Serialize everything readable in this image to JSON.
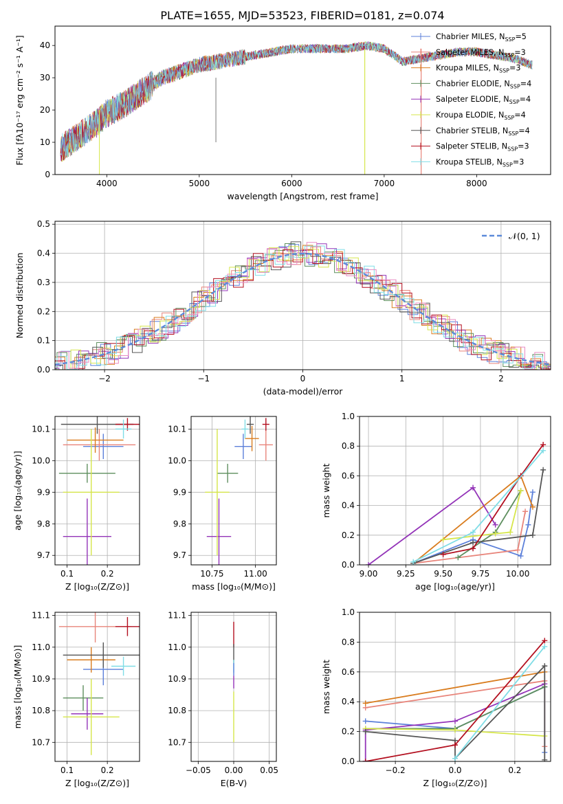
{
  "figure_title": "PLATE=1655, MJD=53523, FIBERID=0181, z=0.074",
  "colors": {
    "Chabrier MILES": "#5b7fd9",
    "Salpeter MILES": "#e8847a",
    "Kroupa MILES": "#d97c1e",
    "Chabrier ELODIE": "#5e8f5e",
    "Salpeter ELODIE": "#9333b8",
    "Kroupa ELODIE": "#d6e64a",
    "Chabrier STELIB": "#555555",
    "Salpeter STELIB": "#b30f1f",
    "Kroupa STELIB": "#7fdde6",
    "hist_pink": "#e88ac2",
    "gaussian": "#5b8ad9"
  },
  "chart_data": [
    {
      "id": "spectrum",
      "type": "line",
      "title": "PLATE=1655, MJD=53523, FIBERID=0181, z=0.074",
      "xlabel": "wavelength [Angstrom, rest frame]",
      "ylabel": "Flux [fλ10⁻¹⁷ erg cm⁻² s⁻¹ A⁻¹]",
      "xlim": [
        3440,
        8800
      ],
      "ylim": [
        0,
        46
      ],
      "xticks": [
        4000,
        5000,
        6000,
        7000,
        8000
      ],
      "yticks": [
        0,
        10,
        20,
        30,
        40
      ],
      "continuum_x": [
        3500,
        3700,
        3900,
        4000,
        4200,
        4400,
        4600,
        4800,
        5000,
        5200,
        5400,
        5600,
        5800,
        6000,
        6200,
        6400,
        6600,
        6800,
        7000,
        7100,
        7200,
        7400,
        7600,
        7800,
        8000,
        8200,
        8400,
        8600
      ],
      "continuum_y": [
        8,
        12,
        16,
        19,
        22,
        26,
        30,
        32,
        34,
        35,
        36,
        37,
        38,
        39,
        39,
        39,
        39,
        40,
        39,
        37,
        35,
        36,
        37,
        38,
        38,
        37,
        36,
        34
      ],
      "legend": [
        {
          "label": "Chabrier MILES, N",
          "n": "5"
        },
        {
          "label": "Salpeter MILES, N",
          "n": "3"
        },
        {
          "label": "Kroupa MILES, N",
          "n": "3"
        },
        {
          "label": "Chabrier ELODIE, N",
          "n": "4"
        },
        {
          "label": "Salpeter ELODIE, N",
          "n": "4"
        },
        {
          "label": "Kroupa ELODIE, N",
          "n": "4"
        },
        {
          "label": "Chabrier STELIB, N",
          "n": "4"
        },
        {
          "label": "Salpeter STELIB, N",
          "n": "3"
        },
        {
          "label": "Kroupa STELIB, N",
          "n": "3"
        }
      ],
      "legend_sub": "SSP",
      "legend_placement": "upper-right"
    },
    {
      "id": "residuals",
      "type": "bar",
      "xlabel": "(data-model)/error",
      "ylabel": "Normed distribution",
      "xlim": [
        -2.5,
        2.5
      ],
      "ylim": [
        0,
        0.51
      ],
      "xticks": [
        -2,
        -1,
        0,
        1,
        2
      ],
      "yticks": [
        0.0,
        0.1,
        0.2,
        0.3,
        0.4,
        0.5
      ],
      "grid": true,
      "legend": "𝒩(0, 1)",
      "legend_placement": "upper-right"
    },
    {
      "id": "age_vs_Z",
      "type": "scatter",
      "xlabel": "Z [log₁₀(Z/Z⊙)]",
      "ylabel": "age  [log₁₀(age/yr)]",
      "xlim": [
        0.07,
        0.28
      ],
      "ylim": [
        9.67,
        10.14
      ],
      "xticks": [
        0.1,
        0.2
      ],
      "yticks": [
        9.7,
        9.8,
        9.9,
        10.0,
        10.1
      ],
      "grid": true,
      "points": [
        {
          "model": "Chabrier MILES",
          "x": 0.19,
          "xerr": 0.05,
          "y": 10.045,
          "yerr": 0.04
        },
        {
          "model": "Salpeter MILES",
          "x": 0.18,
          "xerr": 0.09,
          "y": 10.05,
          "yerr": 0.05
        },
        {
          "model": "Kroupa MILES",
          "x": 0.17,
          "xerr": 0.07,
          "y": 10.065,
          "yerr": 0.04
        },
        {
          "model": "Chabrier ELODIE",
          "x": 0.15,
          "xerr": 0.07,
          "y": 9.96,
          "yerr": 0.03
        },
        {
          "model": "Salpeter ELODIE",
          "x": 0.15,
          "xerr": 0.06,
          "y": 9.76,
          "yerr": 0.12
        },
        {
          "model": "Kroupa ELODIE",
          "x": 0.16,
          "xerr": 0.07,
          "y": 9.9,
          "yerr": 0.2
        },
        {
          "model": "Chabrier STELIB",
          "x": 0.175,
          "xerr": 0.09,
          "y": 10.115,
          "yerr": 0.03
        },
        {
          "model": "Salpeter STELIB",
          "x": 0.25,
          "xerr": 0.03,
          "y": 10.115,
          "yerr": 0.02
        },
        {
          "model": "Kroupa STELIB",
          "x": 0.24,
          "xerr": 0.02,
          "y": 10.1,
          "yerr": 0.03
        }
      ]
    },
    {
      "id": "age_vs_mass",
      "type": "scatter",
      "xlabel": "mass [log₁₀(M/M⊙)]",
      "ylabel": "",
      "xlim": [
        10.63,
        11.12
      ],
      "ylim": [
        9.67,
        10.14
      ],
      "xticks": [
        10.75,
        11.0
      ],
      "yticks": [
        9.7,
        9.8,
        9.9,
        10.0,
        10.1
      ],
      "grid": true,
      "points": [
        {
          "model": "Chabrier MILES",
          "x": 10.93,
          "xerr": 0.05,
          "y": 10.045,
          "yerr": 0.04
        },
        {
          "model": "Salpeter MILES",
          "x": 11.06,
          "xerr": 0.04,
          "y": 10.05,
          "yerr": 0.05
        },
        {
          "model": "Kroupa MILES",
          "x": 10.98,
          "xerr": 0.04,
          "y": 10.07,
          "yerr": 0.04
        },
        {
          "model": "Chabrier ELODIE",
          "x": 10.84,
          "xerr": 0.06,
          "y": 9.96,
          "yerr": 0.03
        },
        {
          "model": "Salpeter ELODIE",
          "x": 10.79,
          "xerr": 0.07,
          "y": 9.76,
          "yerr": 0.12
        },
        {
          "model": "Kroupa ELODIE",
          "x": 10.78,
          "xerr": 0.07,
          "y": 9.9,
          "yerr": 0.2
        },
        {
          "model": "Chabrier STELIB",
          "x": 10.97,
          "xerr": 0.02,
          "y": 10.115,
          "yerr": 0.03
        },
        {
          "model": "Salpeter STELIB",
          "x": 11.06,
          "xerr": 0.02,
          "y": 10.115,
          "yerr": 0.02
        },
        {
          "model": "Kroupa STELIB",
          "x": 10.94,
          "xerr": 0.02,
          "y": 10.1,
          "yerr": 0.03
        }
      ]
    },
    {
      "id": "mass_weight_vs_age",
      "type": "line",
      "xlabel": "age  [log₁₀(age/yr)]",
      "ylabel": "mass weight",
      "xlim": [
        8.94,
        10.22
      ],
      "ylim": [
        0,
        1.0
      ],
      "xticks": [
        9.0,
        9.25,
        9.5,
        9.75,
        10.0
      ],
      "yticks": [
        0.0,
        0.2,
        0.4,
        0.6,
        0.8,
        1.0
      ],
      "grid": true,
      "series": [
        {
          "model": "Chabrier MILES",
          "x": [
            9.3,
            9.7,
            10.02,
            10.07,
            10.1
          ],
          "y": [
            0.01,
            0.17,
            0.06,
            0.27,
            0.49
          ]
        },
        {
          "model": "Salpeter MILES",
          "x": [
            9.3,
            10.0,
            10.05
          ],
          "y": [
            0.01,
            0.1,
            0.36
          ]
        },
        {
          "model": "Kroupa MILES",
          "x": [
            9.3,
            10.02,
            10.1
          ],
          "y": [
            0.01,
            0.6,
            0.39
          ]
        },
        {
          "model": "Chabrier ELODIE",
          "x": [
            9.6,
            9.85,
            10.02
          ],
          "y": [
            0.05,
            0.22,
            0.5
          ]
        },
        {
          "model": "Salpeter ELODIE",
          "x": [
            9.0,
            9.7,
            9.85
          ],
          "y": [
            0.0,
            0.52,
            0.27
          ]
        },
        {
          "model": "Kroupa ELODIE",
          "x": [
            9.5,
            9.85,
            9.95,
            10.02
          ],
          "y": [
            0.17,
            0.21,
            0.22,
            0.5
          ]
        },
        {
          "model": "Chabrier STELIB",
          "x": [
            9.3,
            9.7,
            10.1,
            10.17
          ],
          "y": [
            0.01,
            0.15,
            0.2,
            0.64
          ]
        },
        {
          "model": "Salpeter STELIB",
          "x": [
            9.5,
            9.7,
            10.02,
            10.17
          ],
          "y": [
            0.07,
            0.11,
            0.6,
            0.81
          ]
        },
        {
          "model": "Kroupa STELIB",
          "x": [
            9.3,
            9.7,
            10.17
          ],
          "y": [
            0.02,
            0.22,
            0.77
          ]
        }
      ]
    },
    {
      "id": "mass_vs_Z",
      "type": "scatter",
      "xlabel": "Z [log₁₀(Z/Z⊙)]",
      "ylabel": "mass [log₁₀(M/M⊙)]",
      "xlim": [
        0.07,
        0.28
      ],
      "ylim": [
        10.64,
        11.11
      ],
      "xticks": [
        0.1,
        0.2
      ],
      "yticks": [
        10.7,
        10.8,
        10.9,
        11.0,
        11.1
      ],
      "grid": true,
      "points": [
        {
          "model": "Chabrier MILES",
          "x": 0.19,
          "xerr": 0.05,
          "y": 10.93,
          "yerr": 0.05
        },
        {
          "model": "Salpeter MILES",
          "x": 0.17,
          "xerr": 0.09,
          "y": 11.065,
          "yerr": 0.05
        },
        {
          "model": "Kroupa MILES",
          "x": 0.16,
          "xerr": 0.06,
          "y": 10.96,
          "yerr": 0.04
        },
        {
          "model": "Chabrier ELODIE",
          "x": 0.14,
          "xerr": 0.05,
          "y": 10.84,
          "yerr": 0.04
        },
        {
          "model": "Salpeter ELODIE",
          "x": 0.15,
          "xerr": 0.04,
          "y": 10.79,
          "yerr": 0.05
        },
        {
          "model": "Kroupa ELODIE",
          "x": 0.16,
          "xerr": 0.07,
          "y": 10.78,
          "yerr": 0.12
        },
        {
          "model": "Chabrier STELIB",
          "x": 0.19,
          "xerr": 0.1,
          "y": 10.975,
          "yerr": 0.04
        },
        {
          "model": "Salpeter STELIB",
          "x": 0.25,
          "xerr": 0.03,
          "y": 11.065,
          "yerr": 0.03
        },
        {
          "model": "Kroupa STELIB",
          "x": 0.24,
          "xerr": 0.03,
          "y": 10.94,
          "yerr": 0.03
        }
      ]
    },
    {
      "id": "mass_vs_EBV",
      "type": "scatter",
      "xlabel": "E(B-V)",
      "ylabel": "",
      "xlim": [
        -0.06,
        0.06
      ],
      "ylim": [
        10.64,
        11.11
      ],
      "xticks": [
        -0.05,
        0.0,
        0.05
      ],
      "yticks": [
        10.7,
        10.8,
        10.9,
        11.0,
        11.1
      ],
      "grid": true,
      "points": [
        {
          "model": "Salpeter STELIB",
          "x": 0.0,
          "y": 11.04,
          "yerr": 0.04
        },
        {
          "model": "Chabrier STELIB",
          "x": 0.0,
          "y": 10.98,
          "yerr": 0.03
        },
        {
          "model": "Kroupa STELIB",
          "x": 0.0,
          "y": 10.94,
          "yerr": 0.02
        },
        {
          "model": "Chabrier MILES",
          "x": 0.0,
          "y": 10.93,
          "yerr": 0.02
        },
        {
          "model": "Salpeter ELODIE",
          "x": 0.0,
          "y": 10.89,
          "yerr": 0.02
        },
        {
          "model": "Kroupa ELODIE",
          "x": 0.0,
          "y": 10.78,
          "yerr": 0.08
        }
      ]
    },
    {
      "id": "mass_weight_vs_Z",
      "type": "line",
      "xlabel": "Z [log₁₀(Z/Z⊙)]",
      "ylabel": "mass weight",
      "xlim": [
        -0.32,
        0.32
      ],
      "ylim": [
        0,
        1.0
      ],
      "xticks": [
        -0.2,
        0.0,
        0.2
      ],
      "yticks": [
        0.0,
        0.2,
        0.4,
        0.6,
        0.8,
        1.0
      ],
      "grid": true,
      "series": [
        {
          "model": "Chabrier MILES",
          "x": [
            -0.3,
            0.0,
            0.3,
            0.3
          ],
          "y": [
            0.27,
            0.22,
            0.5,
            0.06
          ]
        },
        {
          "model": "Salpeter MILES",
          "x": [
            -0.3,
            0.3,
            0.3
          ],
          "y": [
            0.36,
            0.54,
            0.1
          ]
        },
        {
          "model": "Kroupa MILES",
          "x": [
            -0.3,
            0.3
          ],
          "y": [
            0.39,
            0.6
          ]
        },
        {
          "model": "Chabrier ELODIE",
          "x": [
            -0.3,
            0.0,
            0.3
          ],
          "y": [
            0.22,
            0.22,
            0.5
          ]
        },
        {
          "model": "Salpeter ELODIE",
          "x": [
            -0.3,
            -0.3,
            0.0,
            0.3
          ],
          "y": [
            0.0,
            0.21,
            0.27,
            0.52
          ]
        },
        {
          "model": "Kroupa ELODIE",
          "x": [
            -0.3,
            0.0,
            0.3
          ],
          "y": [
            0.22,
            0.21,
            0.17
          ]
        },
        {
          "model": "Chabrier STELIB",
          "x": [
            -0.3,
            0.0,
            0.0,
            0.3,
            0.3
          ],
          "y": [
            0.2,
            0.14,
            0.02,
            0.64,
            0.01
          ]
        },
        {
          "model": "Salpeter STELIB",
          "x": [
            -0.3,
            0.0,
            0.3
          ],
          "y": [
            0.0,
            0.11,
            0.81
          ]
        },
        {
          "model": "Kroupa STELIB",
          "x": [
            0.0,
            0.3
          ],
          "y": [
            0.02,
            0.77
          ]
        }
      ]
    }
  ]
}
